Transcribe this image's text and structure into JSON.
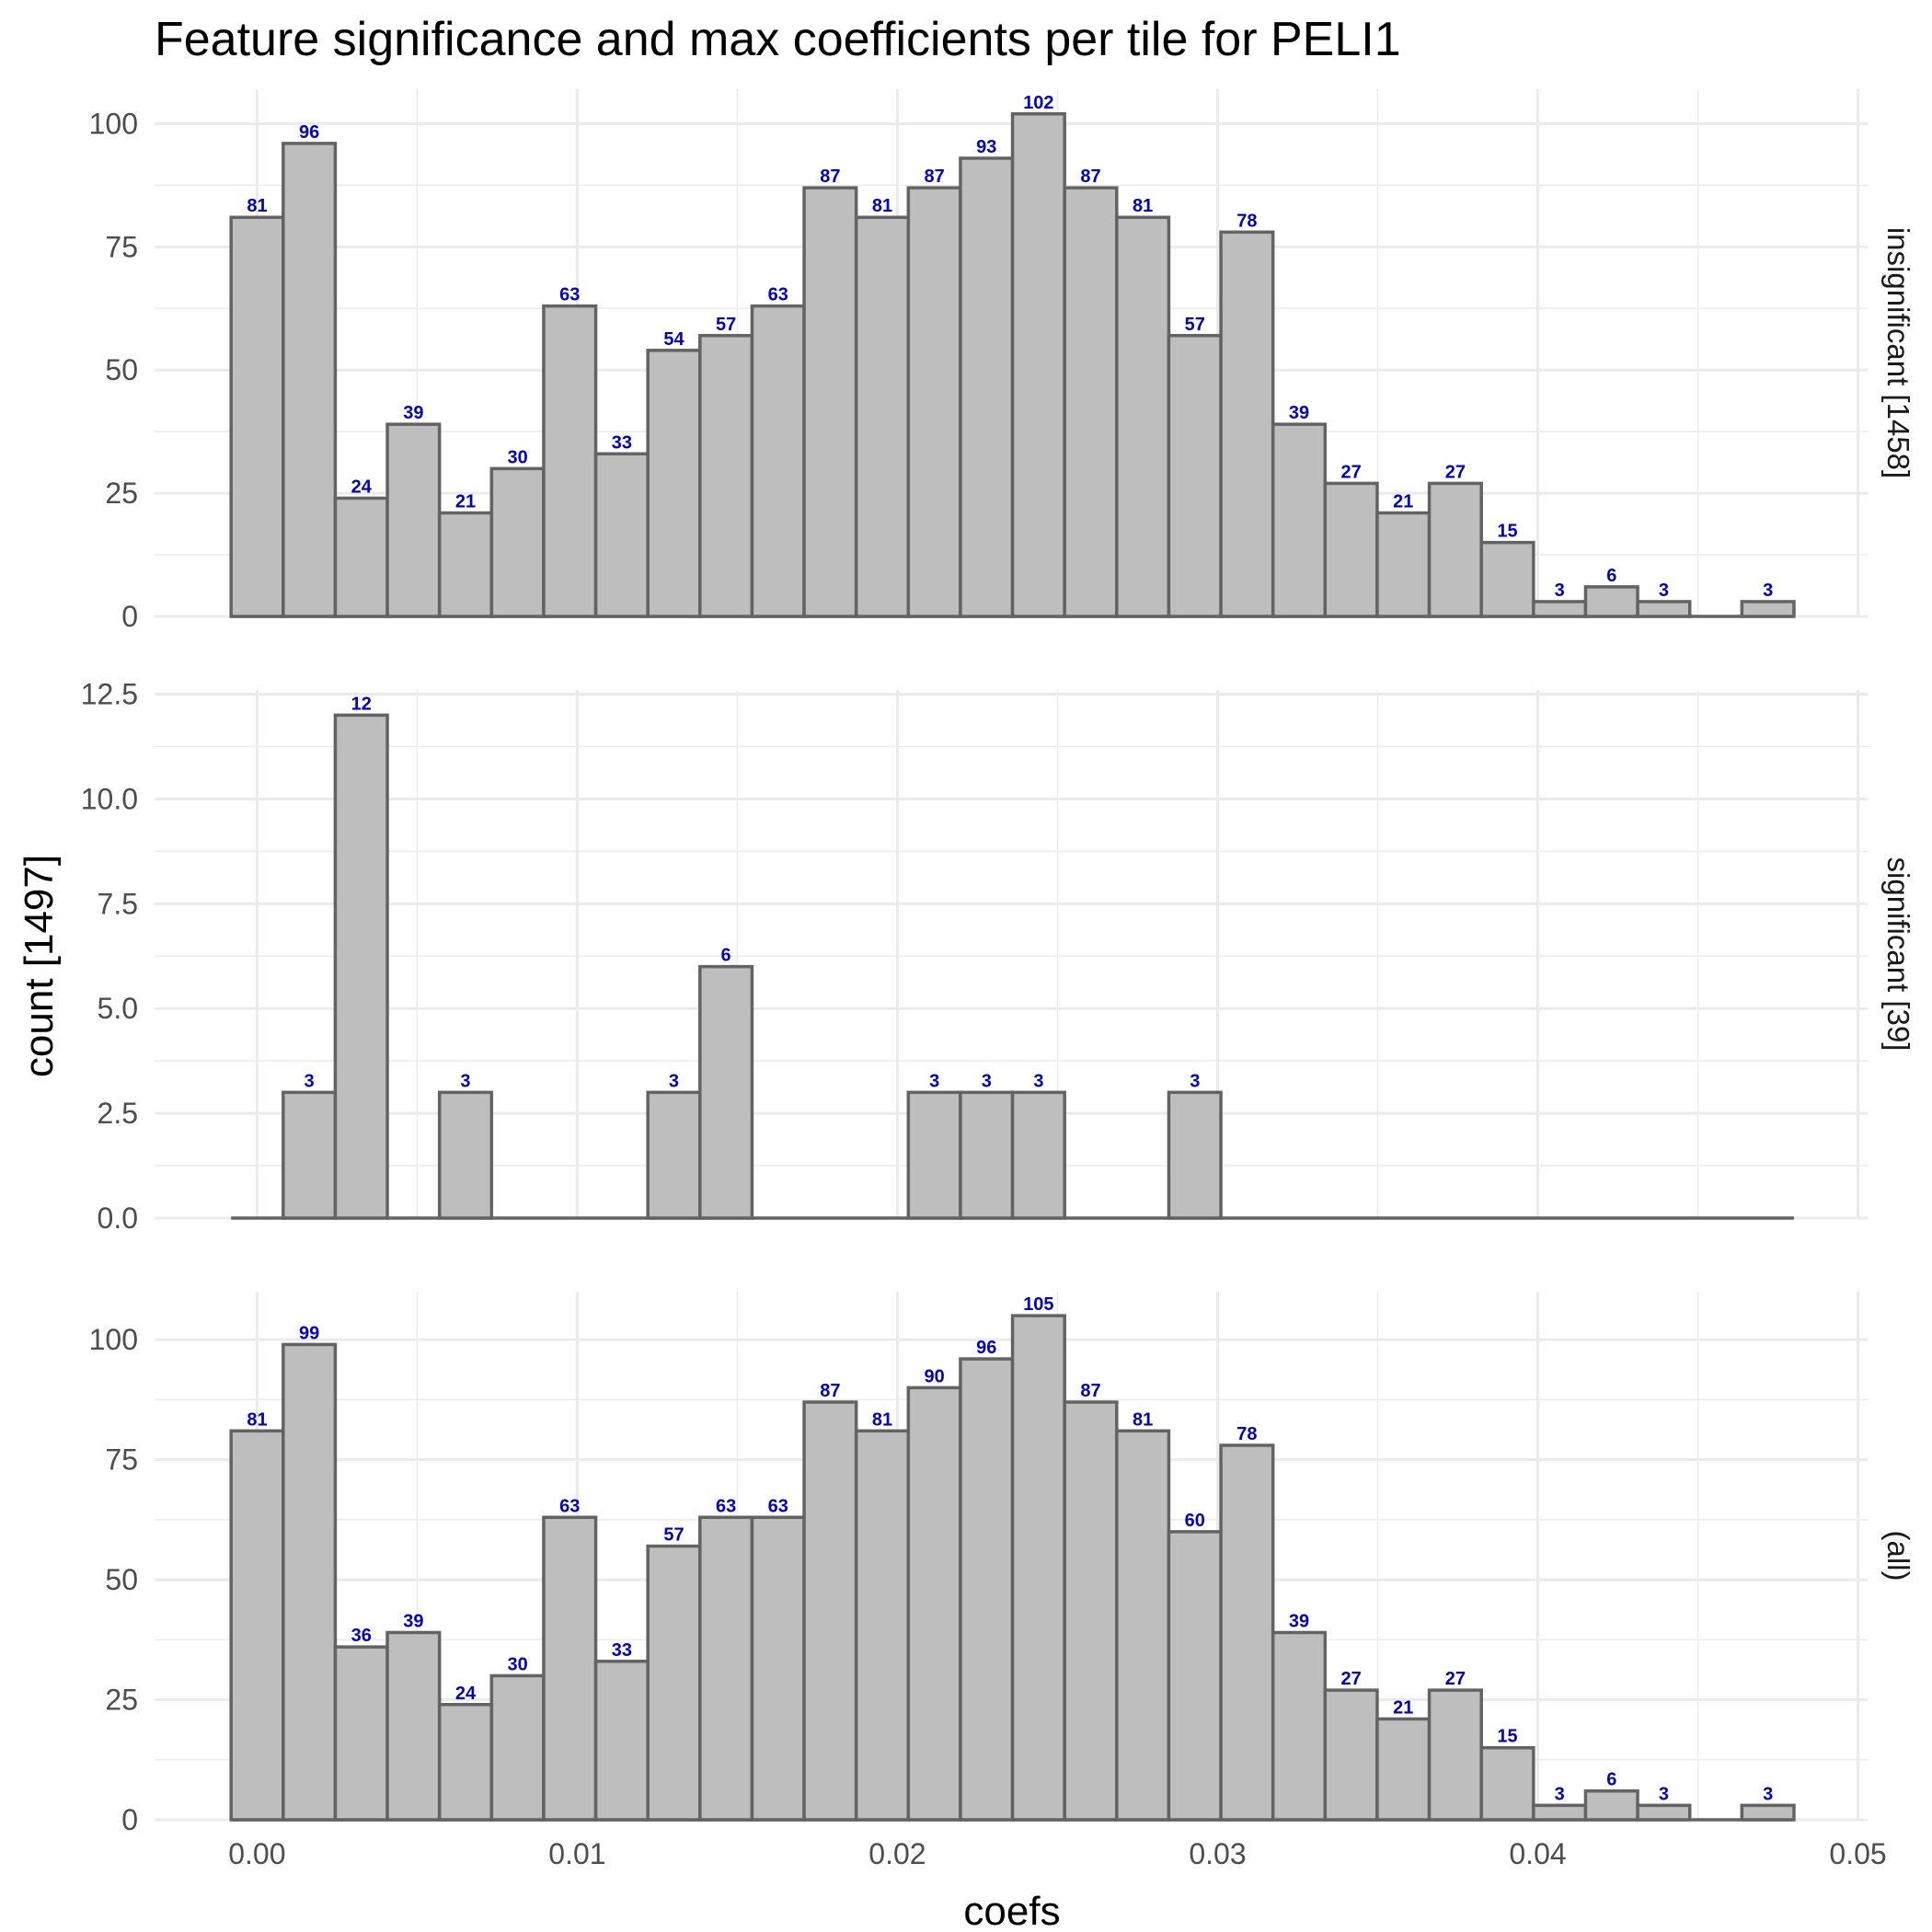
{
  "chart_data": {
    "type": "bar",
    "title": "Feature significance and max coefficients per tile for PELI1",
    "xlabel": "coefs",
    "ylabel": "count [1497]",
    "xlim": [
      -0.0032,
      0.0503
    ],
    "x_ticks": [
      {
        "value": 0.0,
        "label": "0.00"
      },
      {
        "value": 0.01,
        "label": "0.01"
      },
      {
        "value": 0.02,
        "label": "0.02"
      },
      {
        "value": 0.03,
        "label": "0.03"
      },
      {
        "value": 0.04,
        "label": "0.04"
      },
      {
        "value": 0.05,
        "label": "0.05"
      }
    ],
    "bins": {
      "start": -0.00081,
      "width": 0.001627,
      "count": 30
    },
    "panels": [
      {
        "label": "insignificant [1458]",
        "ylim": [
          0,
          107
        ],
        "y_ticks": [
          {
            "value": 0,
            "label": "0"
          },
          {
            "value": 25,
            "label": "25"
          },
          {
            "value": 50,
            "label": "50"
          },
          {
            "value": 75,
            "label": "75"
          },
          {
            "value": 100,
            "label": "100"
          }
        ],
        "values": [
          81,
          96,
          24,
          39,
          21,
          30,
          63,
          33,
          54,
          57,
          63,
          87,
          81,
          87,
          93,
          102,
          87,
          81,
          57,
          78,
          39,
          27,
          21,
          27,
          15,
          3,
          6,
          3,
          0,
          3
        ]
      },
      {
        "label": "significant [39]",
        "ylim": [
          0,
          12.6
        ],
        "y_ticks": [
          {
            "value": 0,
            "label": "0.0"
          },
          {
            "value": 2.5,
            "label": "2.5"
          },
          {
            "value": 5,
            "label": "5.0"
          },
          {
            "value": 7.5,
            "label": "7.5"
          },
          {
            "value": 10,
            "label": "10.0"
          },
          {
            "value": 12.5,
            "label": "12.5"
          }
        ],
        "values": [
          0,
          3,
          12,
          0,
          3,
          0,
          0,
          0,
          3,
          6,
          0,
          0,
          0,
          3,
          3,
          3,
          0,
          0,
          3,
          0,
          0,
          0,
          0,
          0,
          0,
          0,
          0,
          0,
          0,
          0
        ]
      },
      {
        "label": "(all)",
        "ylim": [
          0,
          110
        ],
        "y_ticks": [
          {
            "value": 0,
            "label": "0"
          },
          {
            "value": 25,
            "label": "25"
          },
          {
            "value": 50,
            "label": "50"
          },
          {
            "value": 75,
            "label": "75"
          },
          {
            "value": 100,
            "label": "100"
          }
        ],
        "values": [
          81,
          99,
          36,
          39,
          24,
          30,
          63,
          33,
          57,
          63,
          63,
          87,
          81,
          90,
          96,
          105,
          87,
          81,
          60,
          78,
          39,
          27,
          21,
          27,
          15,
          3,
          6,
          3,
          0,
          3
        ]
      }
    ],
    "colors": {
      "bar_fill": "#bebebe",
      "bar_outline": "#636363",
      "count_label": "#0000cc",
      "grid": "#ebebeb"
    },
    "grid": true,
    "legend": "none"
  }
}
